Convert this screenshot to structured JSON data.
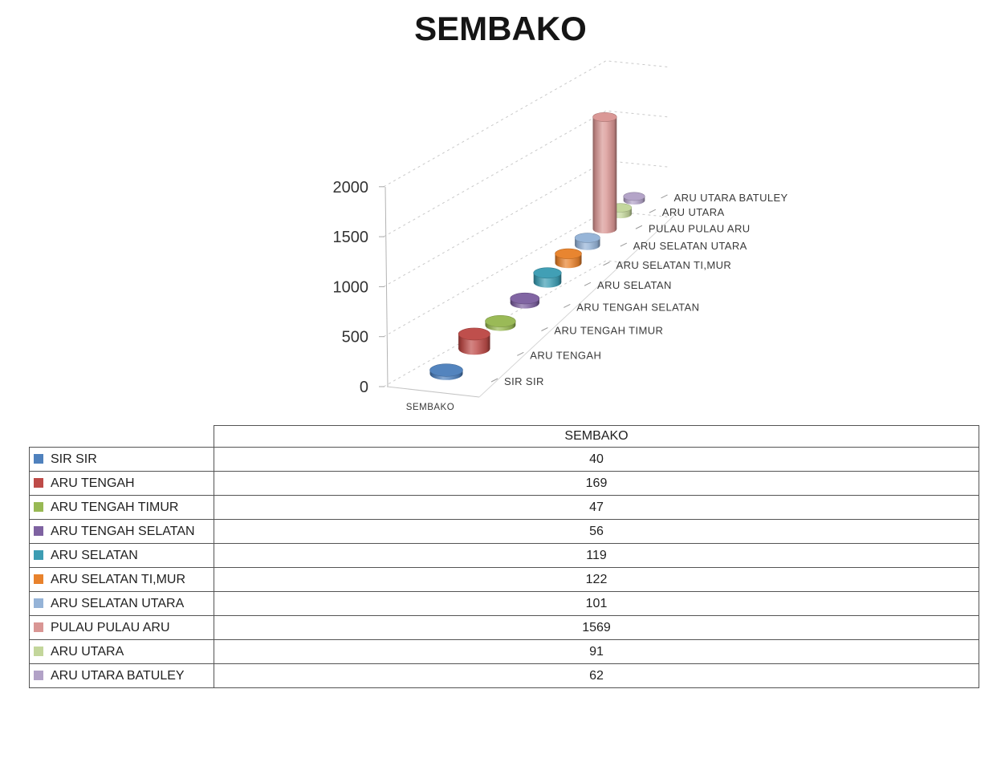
{
  "title": "SEMBAKO",
  "chart_data": {
    "type": "bar",
    "style": "3d-cylinder",
    "title": "SEMBAKO",
    "series_name": "SEMBAKO",
    "categories": [
      "SIR SIR",
      "ARU TENGAH",
      "ARU TENGAH TIMUR",
      "ARU TENGAH SELATAN",
      "ARU SELATAN",
      "ARU SELATAN TI,MUR",
      "ARU SELATAN UTARA",
      "PULAU PULAU ARU",
      "ARU UTARA",
      "ARU UTARA BATULEY"
    ],
    "values": [
      40,
      169,
      47,
      56,
      119,
      122,
      101,
      1569,
      91,
      62
    ],
    "colors": [
      "#4F81BD",
      "#BE4B48",
      "#98B954",
      "#7E62A1",
      "#3D9DB3",
      "#E8822C",
      "#95B3D7",
      "#D99694",
      "#C3D69B",
      "#B2A2C7"
    ],
    "ylim": [
      0,
      2000
    ],
    "yticks": [
      0,
      500,
      1000,
      1500,
      2000
    ],
    "ytick_labels": [
      "0",
      "500",
      "1000",
      "1500",
      "2000"
    ],
    "x_axis_label": "SEMBAKO",
    "grid": "dashed",
    "legend_position": "none"
  },
  "table": {
    "header_label": "SEMBAKO",
    "rows": [
      {
        "label": "SIR SIR",
        "value": "40",
        "swatch": "#4F81BD"
      },
      {
        "label": "ARU TENGAH",
        "value": "169",
        "swatch": "#BE4B48"
      },
      {
        "label": "ARU TENGAH TIMUR",
        "value": "47",
        "swatch": "#98B954"
      },
      {
        "label": "ARU TENGAH SELATAN",
        "value": "56",
        "swatch": "#7E62A1"
      },
      {
        "label": "ARU SELATAN",
        "value": "119",
        "swatch": "#3D9DB3"
      },
      {
        "label": "ARU SELATAN TI,MUR",
        "value": "122",
        "swatch": "#E8822C"
      },
      {
        "label": "ARU SELATAN UTARA",
        "value": "101",
        "swatch": "#95B3D7"
      },
      {
        "label": "PULAU PULAU ARU",
        "value": "1569",
        "swatch": "#D99694"
      },
      {
        "label": "ARU UTARA",
        "value": "91",
        "swatch": "#C3D69B"
      },
      {
        "label": "ARU UTARA BATULEY",
        "value": "62",
        "swatch": "#B2A2C7"
      }
    ]
  }
}
